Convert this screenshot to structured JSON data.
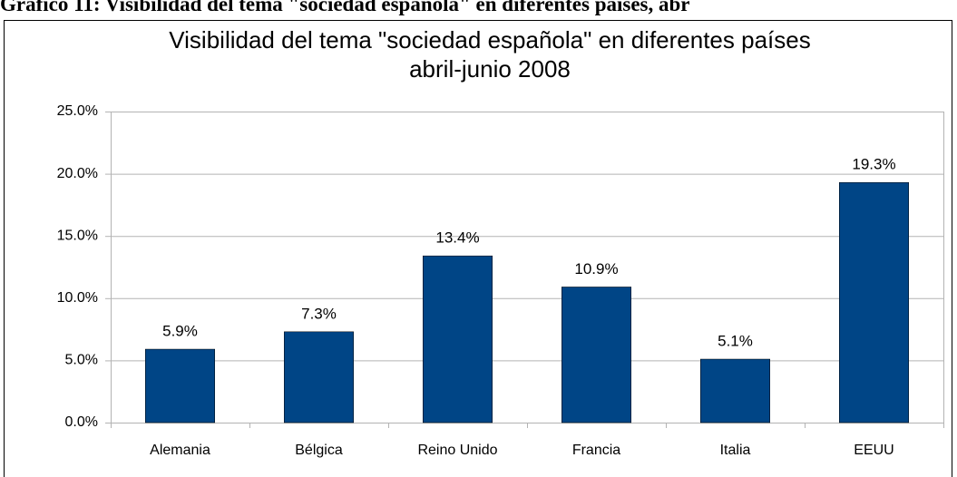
{
  "caption": "Gráfico 11: Visibilidad del tema \"sociedad española\" en diferentes países, abr",
  "chart_data": {
    "type": "bar",
    "title": "Visibilidad del tema \"sociedad española\" en diferentes países",
    "subtitle": "abril-junio 2008",
    "categories": [
      "Alemania",
      "Bélgica",
      "Reino Unido",
      "Francia",
      "Italia",
      "EEUU"
    ],
    "values": [
      5.9,
      7.3,
      13.4,
      10.9,
      5.1,
      19.3
    ],
    "value_labels": [
      "5.9%",
      "7.3%",
      "13.4%",
      "10.9%",
      "5.1%",
      "19.3%"
    ],
    "color": "#004586",
    "ylim": [
      0,
      25
    ],
    "yticks": [
      {
        "value": 0,
        "label": "0.0%"
      },
      {
        "value": 5,
        "label": "5.0%"
      },
      {
        "value": 10,
        "label": "10.0%"
      },
      {
        "value": 15,
        "label": "15.0%"
      },
      {
        "value": 20,
        "label": "20.0%"
      },
      {
        "value": 25,
        "label": "25.0%"
      }
    ],
    "grid": true
  }
}
